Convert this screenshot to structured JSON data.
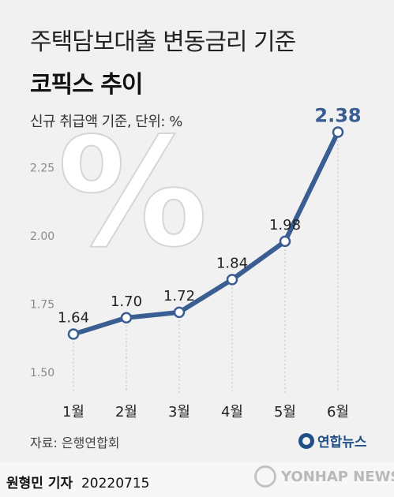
{
  "header": {
    "title_line1": "주택담보대출 변동금리 기준",
    "title_line2": "코픽스 추이",
    "subtitle": "신규 취급액 기준, 단위: %"
  },
  "chart_data": {
    "type": "line",
    "categories": [
      "1월",
      "2월",
      "3월",
      "4월",
      "5월",
      "6월"
    ],
    "values": [
      1.64,
      1.7,
      1.72,
      1.84,
      1.98,
      2.38
    ],
    "value_labels": [
      "1.64",
      "1.70",
      "1.72",
      "1.84",
      "1.98",
      "2.38"
    ],
    "y_ticks": [
      "1.50",
      "1.75",
      "2.00",
      "2.25"
    ],
    "ylim": [
      1.5,
      2.38
    ],
    "grid": false,
    "line_color": "#3a5d92",
    "highlight_color": "#3a5d92",
    "decorative_symbol": "%"
  },
  "footer": {
    "source": "자료: 은행연합회",
    "logo_text": "연합뉴스",
    "reporter_name": "원형민 기자",
    "date": "20220715",
    "watermark": "YONHAP NEWS"
  }
}
